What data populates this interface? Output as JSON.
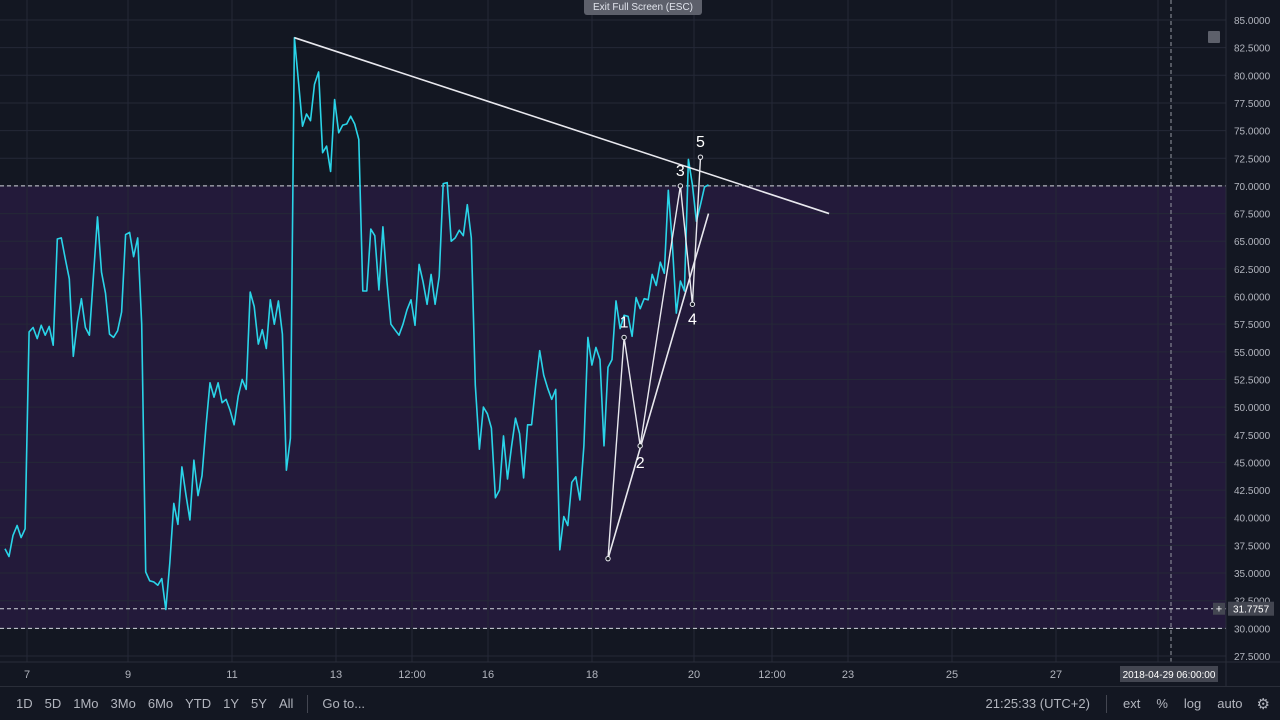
{
  "ui": {
    "fullscreen_label": "Exit Full Screen (ESC)",
    "timeframes": [
      "1D",
      "5D",
      "1Mo",
      "3Mo",
      "6Mo",
      "YTD",
      "1Y",
      "5Y",
      "All"
    ],
    "goto_label": "Go to...",
    "clock": "21:25:33 (UTC+2)",
    "options": [
      "ext",
      "%",
      "log",
      "auto"
    ],
    "crosshair_date": "2018-04-29 06:00:00",
    "price_marker": "31.7757",
    "plus_glyph": "+"
  },
  "colors": {
    "background": "#131722",
    "band": "#231a3a",
    "series": "#2ad4e8",
    "drawing": "#e8e8ee",
    "grid": "#242837"
  },
  "chart_data": {
    "type": "line",
    "ylim": [
      27.5,
      85
    ],
    "y_ticks": [
      "85.0000",
      "82.5000",
      "80.0000",
      "77.5000",
      "75.0000",
      "72.5000",
      "70.0000",
      "67.5000",
      "65.0000",
      "62.5000",
      "60.0000",
      "57.5000",
      "55.0000",
      "52.5000",
      "50.0000",
      "47.5000",
      "45.0000",
      "42.5000",
      "40.0000",
      "37.5000",
      "35.0000",
      "32.5000",
      "30.0000",
      "27.5000"
    ],
    "x_ticks": [
      "7",
      "9",
      "11",
      "13",
      "12:00",
      "16",
      "18",
      "20",
      "12:00",
      "23",
      "25",
      "27"
    ],
    "grid": true,
    "band": [
      30,
      70
    ],
    "horizontal_lines": [
      70,
      31.7757,
      30
    ],
    "series": [
      {
        "values": [
          37.2,
          36.5,
          38.4,
          39.3,
          38.2,
          39.0,
          56.8,
          57.2,
          56.2,
          57.4,
          56.5,
          57.3,
          55.6,
          65.2,
          65.3,
          63.4,
          61.6,
          54.6,
          57.7,
          59.8,
          57.2,
          56.5,
          61.8,
          67.2,
          62.2,
          60.3,
          56.6,
          56.3,
          56.9,
          58.6,
          65.6,
          65.8,
          63.6,
          65.3,
          57.5,
          35.1,
          34.3,
          34.2,
          33.9,
          34.5,
          31.7,
          35.9,
          41.3,
          39.4,
          44.6,
          42.1,
          39.8,
          45.2,
          42.0,
          43.8,
          48.3,
          52.2,
          50.9,
          52.2,
          50.4,
          50.7,
          49.7,
          48.4,
          51.0,
          52.5,
          51.6,
          60.4,
          59.1,
          55.7,
          57.0,
          55.3,
          59.7,
          57.5,
          59.6,
          56.6,
          44.3,
          47.2,
          83.4,
          79.4,
          75.4,
          76.5,
          75.9,
          79.2,
          80.3,
          73.0,
          73.6,
          71.3,
          77.8,
          74.8,
          75.5,
          75.6,
          76.3,
          75.6,
          74.2,
          60.5,
          60.5,
          66.1,
          65.5,
          60.6,
          66.3,
          61.4,
          57.5,
          57.0,
          56.5,
          57.5,
          58.8,
          59.7,
          57.4,
          62.9,
          61.3,
          59.3,
          62.0,
          59.3,
          61.8,
          70.2,
          70.3,
          65.0,
          65.3,
          66.0,
          65.5,
          68.3,
          65.3,
          52.0,
          46.2,
          50.0,
          49.4,
          48.1,
          41.8,
          42.5,
          47.4,
          43.5,
          46.4,
          49.0,
          47.6,
          43.6,
          48.4,
          48.4,
          51.9,
          55.1,
          52.9,
          51.7,
          50.7,
          51.6,
          37.1,
          40.1,
          39.3,
          43.2,
          43.7,
          41.6,
          46.5,
          56.3,
          53.8,
          55.4,
          54.3,
          46.5,
          53.6,
          54.3,
          59.6,
          57.1,
          58.3,
          58.2,
          56.4,
          59.9,
          58.9,
          59.8,
          59.7,
          62.0,
          61.0,
          63.1,
          62.1,
          69.6,
          64.8,
          58.5,
          61.4,
          60.5,
          72.4,
          70.1,
          66.8,
          68.3,
          69.9,
          70.1
        ]
      }
    ],
    "annotations": [
      "1",
      "2",
      "3",
      "4",
      "5"
    ],
    "trendlines": [
      {
        "from": {
          "x": 72,
          "y": 83.4
        },
        "to": {
          "x": 205,
          "y": 67.5
        }
      },
      {
        "from": {
          "x": 150,
          "y": 36.3
        },
        "to": {
          "x": 175,
          "y": 67.5
        }
      }
    ],
    "wave_points": [
      {
        "x": 150,
        "y": 36.3
      },
      {
        "x": 154,
        "y": 56.3
      },
      {
        "x": 158,
        "y": 46.5
      },
      {
        "x": 168,
        "y": 70.0
      },
      {
        "x": 171,
        "y": 59.3
      },
      {
        "x": 173,
        "y": 72.6
      }
    ]
  }
}
